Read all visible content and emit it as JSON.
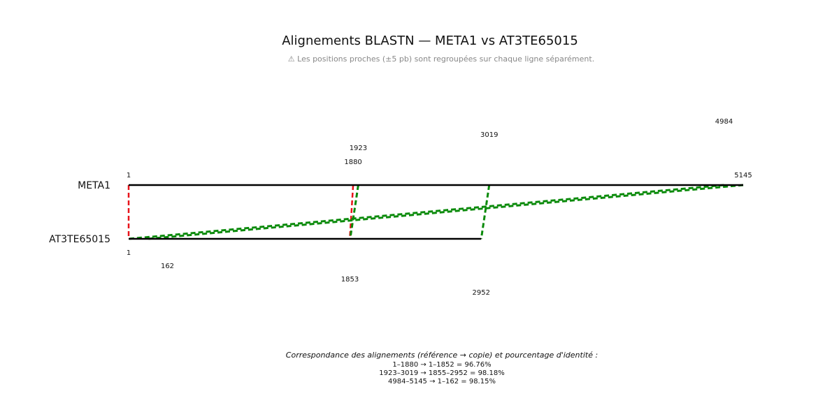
{
  "title": "Alignements BLASTN — META1 vs AT3TE65015",
  "note": "⚠ Les positions proches (±5 pb) sont regroupées sur chaque ligne séparément.",
  "sequences": {
    "reference": {
      "name": "META1",
      "length": 5145
    },
    "copy": {
      "name": "AT3TE65015",
      "length": 2952
    }
  },
  "ref_position_labels": [
    "1",
    "1880",
    "1923",
    "3019",
    "4984",
    "5145"
  ],
  "copy_position_labels": [
    "1",
    "162",
    "1853",
    "2952"
  ],
  "colors": {
    "forward": "#e8141b",
    "reverse": "#0a8a0a",
    "sequence": "#000000"
  },
  "chart_data": {
    "type": "diagram",
    "alignments": [
      {
        "ref_start": 1,
        "ref_end": 1880,
        "copy_start": 1,
        "copy_end": 1852,
        "identity": 96.76,
        "strand": "forward",
        "color": "#e8141b"
      },
      {
        "ref_start": 1923,
        "ref_end": 3019,
        "copy_start": 1855,
        "copy_end": 2952,
        "identity": 98.18,
        "strand": "reverse",
        "color": "#0a8a0a"
      },
      {
        "ref_start": 4984,
        "ref_end": 5145,
        "copy_start": 1,
        "copy_end": 162,
        "identity": 98.15,
        "strand": "reverse",
        "color": "#0a8a0a"
      }
    ]
  },
  "caption": "Correspondance des alignements (référence → copie) et pourcentage d'identité :",
  "legend_lines": [
    "1–1880 → 1–1852 = 96.76%",
    "1923–3019 → 1855–2952 = 98.18%",
    "4984–5145 → 1–162 = 98.15%"
  ]
}
